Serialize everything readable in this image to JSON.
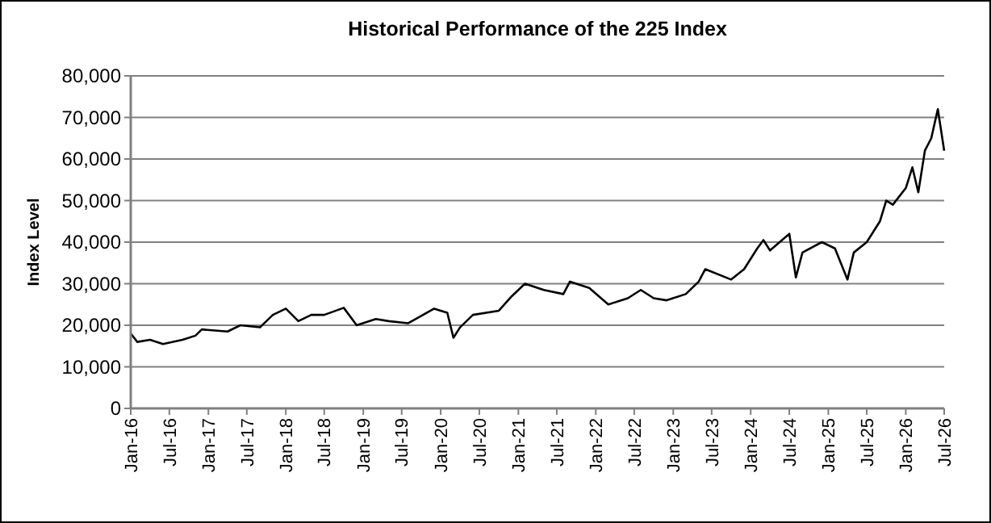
{
  "chart_data": {
    "type": "line",
    "title": "Historical Performance of the 225 Index",
    "ylabel": "Index Level",
    "x": [
      "2016-01",
      "2016-02",
      "2016-04",
      "2016-06",
      "2016-09",
      "2016-11",
      "2016-12",
      "2017-04",
      "2017-06",
      "2017-09",
      "2017-11",
      "2018-01",
      "2018-03",
      "2018-05",
      "2018-07",
      "2018-10",
      "2018-12",
      "2019-03",
      "2019-05",
      "2019-08",
      "2019-12",
      "2020-01",
      "2020-02",
      "2020-03",
      "2020-04",
      "2020-06",
      "2020-10",
      "2020-12",
      "2021-02",
      "2021-05",
      "2021-08",
      "2021-09",
      "2021-12",
      "2022-03",
      "2022-06",
      "2022-08",
      "2022-10",
      "2022-12",
      "2023-03",
      "2023-05",
      "2023-06",
      "2023-10",
      "2023-12",
      "2024-02",
      "2024-03",
      "2024-04",
      "2024-07",
      "2024-08",
      "2024-09",
      "2024-12",
      "2025-02",
      "2025-04",
      "2025-05",
      "2025-07",
      "2025-09",
      "2025-10",
      "2025-11",
      "2026-01",
      "2026-02",
      "2026-03",
      "2026-04",
      "2026-05",
      "2026-06",
      "2026-07"
    ],
    "series": [
      {
        "color": "#000000",
        "values": [
          18000,
          16000,
          16500,
          15500,
          16500,
          17500,
          19000,
          18500,
          20000,
          19500,
          22500,
          24000,
          21000,
          22500,
          22500,
          24200,
          20000,
          21500,
          21000,
          20500,
          24000,
          23500,
          23000,
          17000,
          19500,
          22500,
          23500,
          27000,
          30000,
          28500,
          27500,
          30500,
          29000,
          25000,
          26500,
          28500,
          26500,
          26000,
          27500,
          30500,
          33500,
          31000,
          33500,
          38500,
          40500,
          38000,
          42000,
          31500,
          37500,
          40000,
          38500,
          31000,
          37500,
          40000,
          45000,
          50000,
          49000,
          53000,
          58000,
          52000,
          62000,
          65000,
          72000,
          62000
        ]
      }
    ],
    "xlim": [
      "2016-01",
      "2026-07"
    ],
    "xticks": [
      {
        "value": "2016-01",
        "label": "Jan-16"
      },
      {
        "value": "2016-07",
        "label": "Jul-16"
      },
      {
        "value": "2017-01",
        "label": "Jan-17"
      },
      {
        "value": "2017-07",
        "label": "Jul-17"
      },
      {
        "value": "2018-01",
        "label": "Jan-18"
      },
      {
        "value": "2018-07",
        "label": "Jul-18"
      },
      {
        "value": "2019-01",
        "label": "Jan-19"
      },
      {
        "value": "2019-07",
        "label": "Jul-19"
      },
      {
        "value": "2020-01",
        "label": "Jan-20"
      },
      {
        "value": "2020-07",
        "label": "Jul-20"
      },
      {
        "value": "2021-01",
        "label": "Jan-21"
      },
      {
        "value": "2021-07",
        "label": "Jul-21"
      },
      {
        "value": "2022-01",
        "label": "Jan-22"
      },
      {
        "value": "2022-07",
        "label": "Jul-22"
      },
      {
        "value": "2023-01",
        "label": "Jan-23"
      },
      {
        "value": "2023-07",
        "label": "Jul-23"
      },
      {
        "value": "2024-01",
        "label": "Jan-24"
      },
      {
        "value": "2024-07",
        "label": "Jul-24"
      },
      {
        "value": "2025-01",
        "label": "Jan-25"
      },
      {
        "value": "2025-07",
        "label": "Jul-25"
      },
      {
        "value": "2026-01",
        "label": "Jan-26"
      },
      {
        "value": "2026-07",
        "label": "Jul-26"
      }
    ],
    "ylim": [
      0,
      80000
    ],
    "yticks": [
      {
        "value": 0,
        "label": "0"
      },
      {
        "value": 10000,
        "label": "10,000"
      },
      {
        "value": 20000,
        "label": "20,000"
      },
      {
        "value": 30000,
        "label": "30,000"
      },
      {
        "value": 40000,
        "label": "40,000"
      },
      {
        "value": 50000,
        "label": "50,000"
      },
      {
        "value": 60000,
        "label": "60,000"
      },
      {
        "value": 70000,
        "label": "70,000"
      },
      {
        "value": 80000,
        "label": "80,000"
      }
    ],
    "grid": "y",
    "marker": "none",
    "line_style": "solid"
  }
}
